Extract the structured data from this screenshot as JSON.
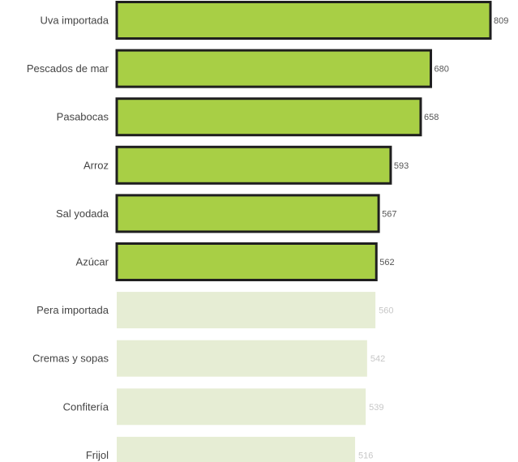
{
  "chart_data": {
    "type": "bar",
    "orientation": "horizontal",
    "categories": [
      "Uva importada",
      "Pescados de mar",
      "Pasabocas",
      "Arroz",
      "Sal yodada",
      "Azúcar",
      "Pera importada",
      "Cremas y sopas",
      "Confitería",
      "Frijol"
    ],
    "values": [
      809,
      680,
      658,
      593,
      567,
      562,
      560,
      542,
      539,
      516
    ],
    "value_labels": [
      "809",
      "680",
      "658",
      "593",
      "567",
      "562",
      "560",
      "542",
      "539",
      "516"
    ],
    "highlighted": [
      true,
      true,
      true,
      true,
      true,
      true,
      false,
      false,
      false,
      false
    ],
    "colors": {
      "highlight_fill": "#a8cf45",
      "highlight_stroke": "#1f1f1f",
      "muted_fill": "#e6edd4",
      "muted_label": "#c7c7c7",
      "highlight_label": "#555555",
      "category_text": "#444444"
    },
    "xlim": [
      0,
      809
    ],
    "grid": false,
    "title": "",
    "xlabel": "",
    "ylabel": ""
  }
}
